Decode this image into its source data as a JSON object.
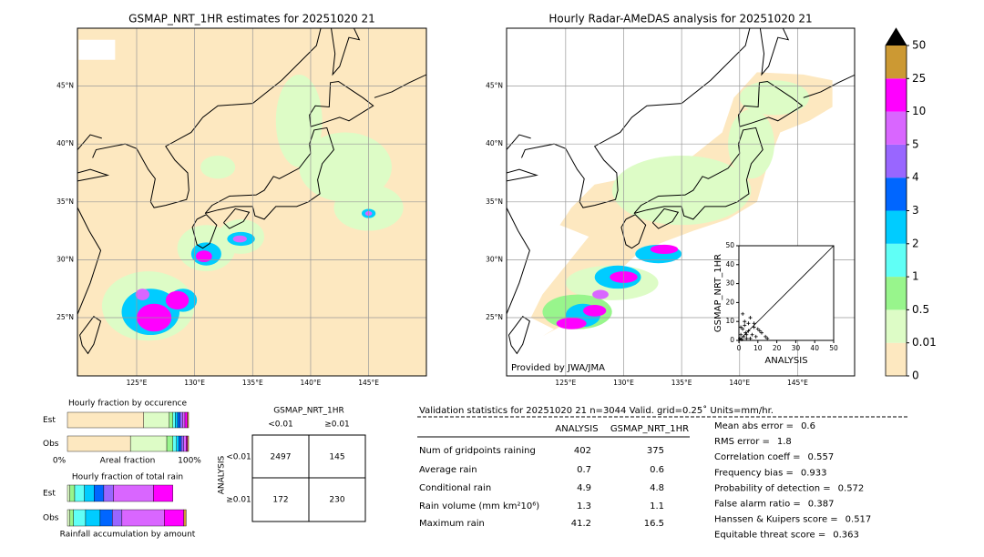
{
  "maps": [
    {
      "title": "GSMAP_NRT_1HR estimates for 20251020 21",
      "lon_ticks": [
        {
          "value": 125,
          "label": "125°E"
        },
        {
          "value": 130,
          "label": "130°E"
        },
        {
          "value": 135,
          "label": "135°E"
        },
        {
          "value": 140,
          "label": "140°E"
        },
        {
          "value": 145,
          "label": "145°E"
        }
      ],
      "lat_ticks": [
        {
          "value": 25,
          "label": "25°N"
        },
        {
          "value": 30,
          "label": "30°N"
        },
        {
          "value": 35,
          "label": "35°N"
        },
        {
          "value": 40,
          "label": "40°N"
        },
        {
          "value": 45,
          "label": "45°N"
        }
      ]
    },
    {
      "title": "Hourly Radar-AMeDAS analysis for 20251020 21",
      "credit": "Provided by JWA/JMA",
      "lon_ticks": [
        {
          "value": 125,
          "label": "125°E"
        },
        {
          "value": 130,
          "label": "130°E"
        },
        {
          "value": 135,
          "label": "135°E"
        },
        {
          "value": 140,
          "label": "140°E"
        },
        {
          "value": 145,
          "label": "145°E"
        }
      ],
      "lat_ticks": [
        {
          "value": 25,
          "label": "25°N"
        },
        {
          "value": 30,
          "label": "30°N"
        },
        {
          "value": 35,
          "label": "35°N"
        },
        {
          "value": 40,
          "label": "40°N"
        },
        {
          "value": 45,
          "label": "45°N"
        }
      ]
    }
  ],
  "colorbar": {
    "levels": [
      0,
      0.01,
      0.5,
      1,
      2,
      3,
      4,
      5,
      10,
      25,
      50
    ],
    "colors": [
      "#fde8c0",
      "#ddfcc6",
      "#98f58c",
      "#60fff6",
      "#00ccff",
      "#0066ff",
      "#9966ff",
      "#d966ff",
      "#ff00ff",
      "#cc9933"
    ]
  },
  "occurrence": {
    "title": "Hourly fraction by occurence",
    "rows": [
      {
        "name": "Est",
        "values": [
          63,
          21,
          3,
          2,
          2,
          2,
          2,
          2,
          2,
          1
        ]
      },
      {
        "name": "Obs",
        "values": [
          52,
          30,
          5,
          3,
          2,
          2,
          2,
          2,
          1,
          1
        ]
      }
    ],
    "xlabels": [
      "0%",
      "Areal fraction",
      "100%"
    ]
  },
  "total_rain": {
    "title": "Hourly fraction of total rain",
    "rows": [
      {
        "name": "Est",
        "values": [
          0,
          2,
          4,
          8,
          8,
          8,
          8,
          33,
          16,
          0
        ]
      },
      {
        "name": "Obs",
        "values": [
          0,
          2,
          3,
          10,
          12,
          10,
          8,
          35,
          16,
          2
        ]
      }
    ],
    "caption": "Rainfall accumulation by amount"
  },
  "contingency": {
    "title": "GSMAP_NRT_1HR",
    "col_labels": [
      "<0.01",
      "≥0.01"
    ],
    "row_title": "ANALYSIS",
    "row_labels": [
      "<0.01",
      "≥0.01"
    ],
    "cells": [
      [
        2497,
        145
      ],
      [
        172,
        230
      ]
    ]
  },
  "stats": {
    "title": "Validation statistics for 20251020 21  n=3044 Valid. grid=0.25˚ Units=mm/hr.",
    "headers": [
      "ANALYSIS",
      "GSMAP_NRT_1HR"
    ],
    "rows": [
      {
        "label": "Num of gridpoints raining",
        "values": [
          402,
          375
        ]
      },
      {
        "label": "Average rain",
        "values": [
          0.7,
          0.6
        ]
      },
      {
        "label": "Conditional rain",
        "values": [
          4.9,
          4.8
        ]
      },
      {
        "label": "Rain volume (mm km²10⁶)",
        "values": [
          1.3,
          1.1
        ]
      },
      {
        "label": "Maximum rain",
        "values": [
          41.2,
          16.5
        ]
      }
    ],
    "scores": [
      {
        "label": "Mean abs error =",
        "value": 0.6
      },
      {
        "label": "RMS error =",
        "value": 1.8
      },
      {
        "label": "Correlation coeff =",
        "value": 0.557
      },
      {
        "label": "Frequency bias =",
        "value": 0.933
      },
      {
        "label": "Probability of detection =",
        "value": 0.572
      },
      {
        "label": "False alarm ratio =",
        "value": 0.387
      },
      {
        "label": "Hanssen & Kuipers score =",
        "value": 0.517
      },
      {
        "label": "Equitable threat score =",
        "value": 0.363
      }
    ]
  },
  "scatter": {
    "xlabel": "ANALYSIS",
    "ylabel": "GSMAP_NRT_1HR",
    "xlim": [
      0,
      50
    ],
    "ylim": [
      0,
      50
    ],
    "xticks": [
      0,
      10,
      20,
      30,
      40,
      50
    ],
    "yticks": [
      0,
      10,
      20,
      30,
      40,
      50
    ],
    "x": [
      0.5,
      1,
      1.5,
      2,
      2.5,
      3,
      3.5,
      4,
      5,
      6,
      7,
      8,
      9,
      10,
      12,
      14,
      3,
      5,
      2,
      6,
      8,
      11,
      1,
      4,
      15
    ],
    "y": [
      1,
      3,
      0.5,
      6,
      2,
      8,
      4,
      1,
      5,
      12,
      3,
      7,
      2,
      6,
      4,
      2,
      10,
      9,
      14,
      1,
      9,
      5,
      7,
      3,
      1
    ]
  }
}
